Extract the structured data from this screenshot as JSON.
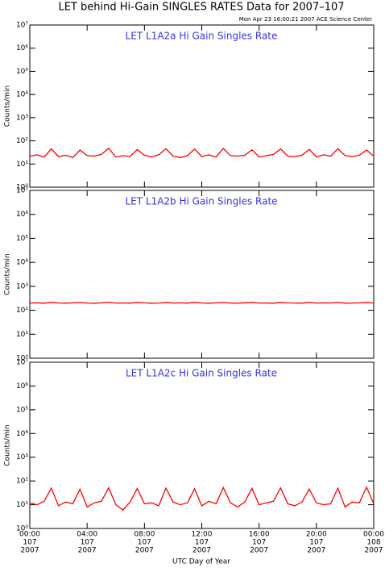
{
  "title": "LET behind Hi-Gain SINGLES RATES Data for 2007–107",
  "subtitle": "Mon Apr 23 16:00:21 2007 ACE Science Center",
  "x_label": "UTC Day of Year",
  "chart_data": [
    {
      "type": "line",
      "annotation": "LET L1A2a Hi Gain Singles Rate",
      "ylabel": "Counts/min",
      "log_y": true,
      "ylim": [
        1,
        10000000
      ],
      "yticks": [
        {
          "value": 1,
          "label": "10⁰"
        },
        {
          "value": 10,
          "label": "10¹"
        },
        {
          "value": 100,
          "label": "10²"
        },
        {
          "value": 1000,
          "label": "10³"
        },
        {
          "value": 10000,
          "label": "10⁴"
        },
        {
          "value": 100000,
          "label": "10⁵"
        },
        {
          "value": 1000000,
          "label": "10⁶"
        },
        {
          "value": 10000000,
          "label": "10⁷"
        }
      ],
      "xlim": [
        0,
        24
      ],
      "xticks": [
        0,
        4,
        8,
        12,
        16,
        20,
        24
      ],
      "x": [
        0,
        0.5,
        1,
        1.5,
        2,
        2.5,
        3,
        3.5,
        4,
        4.5,
        5,
        5.5,
        6,
        6.5,
        7,
        7.5,
        8,
        8.5,
        9,
        9.5,
        10,
        10.5,
        11,
        11.5,
        12,
        12.5,
        13,
        13.5,
        14,
        14.5,
        15,
        15.5,
        16,
        16.5,
        17,
        17.5,
        18,
        18.5,
        19,
        19.5,
        20,
        20.5,
        21,
        21.5,
        22,
        22.5,
        23,
        23.5,
        24
      ],
      "series": [
        {
          "color": "#ff0000",
          "values": [
            22,
            25,
            20,
            45,
            21,
            24,
            19,
            40,
            23,
            22,
            26,
            48,
            20,
            23,
            21,
            42,
            24,
            20,
            25,
            46,
            22,
            19,
            23,
            44,
            21,
            25,
            20,
            47,
            23,
            22,
            24,
            41,
            20,
            23,
            26,
            45,
            22,
            21,
            24,
            43,
            20,
            25,
            22,
            46,
            23,
            21,
            24,
            40,
            22
          ]
        }
      ]
    },
    {
      "type": "line",
      "annotation": "LET L1A2b Hi Gain Singles Rate",
      "ylabel": "Counts/min",
      "log_y": true,
      "ylim": [
        1,
        10000000
      ],
      "yticks": [
        {
          "value": 1,
          "label": "10⁰"
        },
        {
          "value": 10,
          "label": "10¹"
        },
        {
          "value": 100,
          "label": "10²"
        },
        {
          "value": 1000,
          "label": "10³"
        },
        {
          "value": 10000,
          "label": "10⁴"
        },
        {
          "value": 100000,
          "label": "10⁵"
        },
        {
          "value": 1000000,
          "label": "10⁶"
        },
        {
          "value": 10000000,
          "label": "10⁷"
        }
      ],
      "xlim": [
        0,
        24
      ],
      "xticks": [
        0,
        4,
        8,
        12,
        16,
        20,
        24
      ],
      "x": [
        0,
        0.5,
        1,
        1.5,
        2,
        2.5,
        3,
        3.5,
        4,
        4.5,
        5,
        5.5,
        6,
        6.5,
        7,
        7.5,
        8,
        8.5,
        9,
        9.5,
        10,
        10.5,
        11,
        11.5,
        12,
        12.5,
        13,
        13.5,
        14,
        14.5,
        15,
        15.5,
        16,
        16.5,
        17,
        17.5,
        18,
        18.5,
        19,
        19.5,
        20,
        20.5,
        21,
        21.5,
        22,
        22.5,
        23,
        23.5,
        24
      ],
      "series": [
        {
          "color": "#ff0000",
          "values": [
            200,
            205,
            198,
            215,
            202,
            199,
            204,
            212,
            201,
            197,
            203,
            216,
            200,
            202,
            199,
            214,
            203,
            198,
            201,
            213,
            200,
            204,
            199,
            215,
            202,
            197,
            203,
            212,
            201,
            199,
            205,
            214,
            200,
            202,
            198,
            213,
            203,
            201,
            199,
            215,
            200,
            204,
            202,
            212,
            199,
            201,
            203,
            214,
            200
          ]
        }
      ]
    },
    {
      "type": "line",
      "annotation": "LET L1A2c Hi Gain Singles Rate",
      "ylabel": "Counts/min",
      "log_y": true,
      "ylim": [
        1,
        10000000
      ],
      "yticks": [
        {
          "value": 1,
          "label": "10⁰"
        },
        {
          "value": 10,
          "label": "10¹"
        },
        {
          "value": 100,
          "label": "10²"
        },
        {
          "value": 1000,
          "label": "10³"
        },
        {
          "value": 10000,
          "label": "10⁴"
        },
        {
          "value": 100000,
          "label": "10⁵"
        },
        {
          "value": 1000000,
          "label": "10⁶"
        },
        {
          "value": 10000000,
          "label": "10⁷"
        }
      ],
      "xlim": [
        0,
        24
      ],
      "xticks": [
        {
          "value": 0,
          "label": "00:00"
        },
        {
          "value": 4,
          "label": "04:00"
        },
        {
          "value": 8,
          "label": "08:00"
        },
        {
          "value": 12,
          "label": "12:00"
        },
        {
          "value": 16,
          "label": "16:00"
        },
        {
          "value": 20,
          "label": "20:00"
        },
        {
          "value": 24,
          "label": "00:00"
        }
      ],
      "xtick_sublabels": [
        [
          "107",
          "2007"
        ],
        [
          "107",
          "2007"
        ],
        [
          "107",
          "2007"
        ],
        [
          "107",
          "2007"
        ],
        [
          "107",
          "2007"
        ],
        [
          "107",
          "2007"
        ],
        [
          "108",
          "2007"
        ]
      ],
      "x": [
        0,
        0.5,
        1,
        1.5,
        2,
        2.5,
        3,
        3.5,
        4,
        4.5,
        5,
        5.5,
        6,
        6.5,
        7,
        7.5,
        8,
        8.5,
        9,
        9.5,
        10,
        10.5,
        11,
        11.5,
        12,
        12.5,
        13,
        13.5,
        14,
        14.5,
        15,
        15.5,
        16,
        16.5,
        17,
        17.5,
        18,
        18.5,
        19,
        19.5,
        20,
        20.5,
        21,
        21.5,
        22,
        22.5,
        23,
        23.5,
        24
      ],
      "series": [
        {
          "color": "#ff0000",
          "values": [
            12,
            10,
            14,
            50,
            9,
            13,
            11,
            45,
            8,
            12,
            14,
            52,
            10,
            6,
            13,
            48,
            11,
            12,
            9,
            50,
            13,
            10,
            12,
            47,
            9,
            14,
            11,
            53,
            12,
            8,
            13,
            49,
            10,
            12,
            14,
            51,
            11,
            9,
            13,
            46,
            12,
            10,
            11,
            50,
            8,
            13,
            12,
            55,
            11
          ]
        }
      ]
    }
  ]
}
